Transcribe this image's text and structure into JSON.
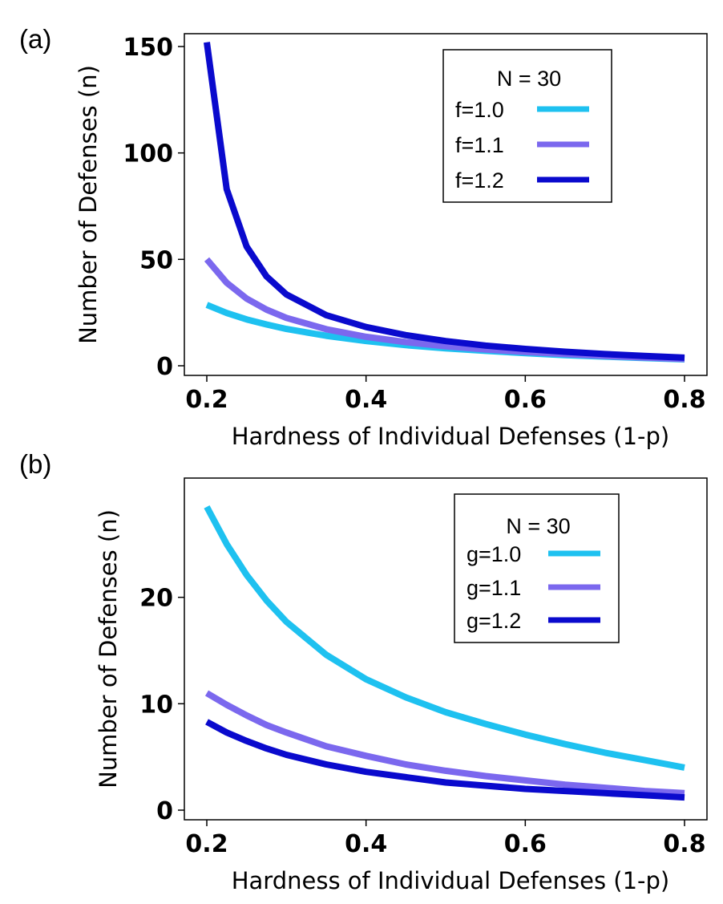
{
  "chart_data": [
    {
      "type": "line",
      "panel_label": "(a)",
      "xlabel": "Hardness of Individual Defenses (1-p)",
      "ylabel": "Number of Defenses (n)",
      "xlim": [
        0.2,
        0.8
      ],
      "ylim": [
        0,
        150
      ],
      "xticks": [
        "0.2",
        "0.4",
        "0.6",
        "0.8"
      ],
      "yticks": [
        "0",
        "50",
        "100",
        "150"
      ],
      "ytick_values": [
        0,
        50,
        100,
        150
      ],
      "legend_title": "N = 30",
      "legend_position": "top-right",
      "x": [
        0.2,
        0.225,
        0.25,
        0.275,
        0.3,
        0.35,
        0.4,
        0.45,
        0.5,
        0.55,
        0.6,
        0.65,
        0.7,
        0.75,
        0.8
      ],
      "series": [
        {
          "name": "f=1.0",
          "color": "#1ec1f0",
          "values": [
            28.6,
            24.8,
            21.8,
            19.4,
            17.3,
            14.1,
            11.6,
            9.7,
            8.2,
            7.0,
            5.9,
            5.0,
            4.3,
            3.6,
            3.0
          ]
        },
        {
          "name": "f=1.1",
          "color": "#7b68ee",
          "values": [
            50.0,
            39.0,
            31.6,
            26.4,
            22.5,
            17.2,
            13.6,
            11.1,
            9.2,
            7.7,
            6.5,
            5.5,
            4.6,
            3.9,
            3.2
          ]
        },
        {
          "name": "f=1.2",
          "color": "#0a0acd",
          "values": [
            152.0,
            83.0,
            56.0,
            42.0,
            33.5,
            23.8,
            18.2,
            14.4,
            11.6,
            9.5,
            7.9,
            6.6,
            5.5,
            4.6,
            3.8
          ]
        }
      ]
    },
    {
      "type": "line",
      "panel_label": "(b)",
      "xlabel": "Hardness of Individual Defenses (1-p)",
      "ylabel": "Number of Defenses (n)",
      "xlim": [
        0.2,
        0.8
      ],
      "ylim": [
        0,
        30
      ],
      "xticks": [
        "0.2",
        "0.4",
        "0.6",
        "0.8"
      ],
      "yticks": [
        "0",
        "10",
        "20"
      ],
      "ytick_values": [
        0,
        10,
        20
      ],
      "legend_title": "N = 30",
      "legend_position": "top-right",
      "x": [
        0.2,
        0.225,
        0.25,
        0.275,
        0.3,
        0.35,
        0.4,
        0.45,
        0.5,
        0.55,
        0.6,
        0.65,
        0.7,
        0.75,
        0.8
      ],
      "series": [
        {
          "name": "g=1.0",
          "color": "#1ec1f0",
          "values": [
            28.5,
            25.0,
            22.1,
            19.7,
            17.7,
            14.6,
            12.3,
            10.6,
            9.2,
            8.1,
            7.1,
            6.2,
            5.4,
            4.7,
            4.0
          ]
        },
        {
          "name": "g=1.1",
          "color": "#7b68ee",
          "values": [
            11.0,
            9.9,
            8.9,
            8.0,
            7.3,
            6.0,
            5.1,
            4.3,
            3.7,
            3.2,
            2.8,
            2.4,
            2.1,
            1.8,
            1.6
          ]
        },
        {
          "name": "g=1.2",
          "color": "#0a0acd",
          "values": [
            8.3,
            7.3,
            6.5,
            5.8,
            5.2,
            4.3,
            3.6,
            3.1,
            2.6,
            2.3,
            2.0,
            1.8,
            1.6,
            1.4,
            1.2
          ]
        }
      ]
    }
  ]
}
